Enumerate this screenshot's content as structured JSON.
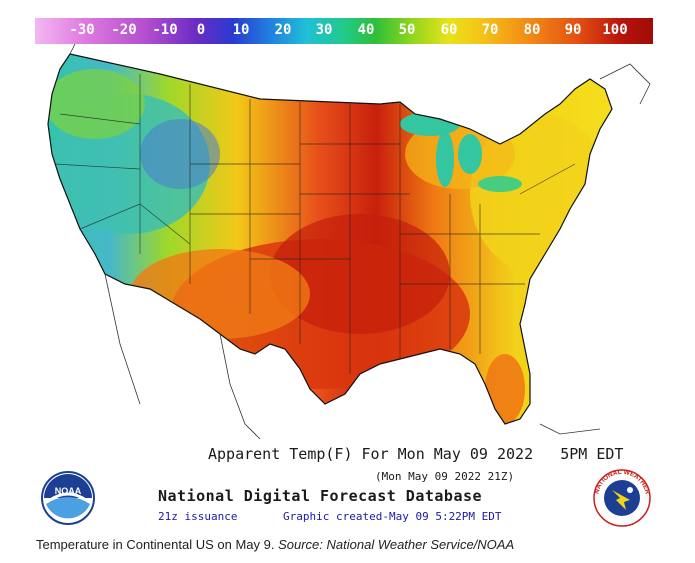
{
  "colorbar": {
    "ticks": [
      "-30",
      "-20",
      "-10",
      "0",
      "10",
      "20",
      "30",
      "40",
      "50",
      "60",
      "70",
      "80",
      "90",
      "100"
    ]
  },
  "map": {
    "title_line": "Apparent Temp(F) For Mon May 09 2022",
    "time_label": "5PM EDT",
    "issued_line": "(Mon May 09 2022 21Z)",
    "database": "National Digital Forecast Database",
    "issuance": "21z issuance",
    "created": "Graphic created-May 09  5:22PM EDT"
  },
  "logos": {
    "noaa_text": "NOAA",
    "nws_text": "NATIONAL WEATHER SERVICE"
  },
  "credit": {
    "text": "Temperature in Continental US on May 9.",
    "source": "Source: National Weather Service/NOAA"
  },
  "colors": {
    "hot": "#c8200c",
    "warm": "#f07a14",
    "mild": "#f2d21a",
    "cool": "#9fd82a",
    "cold": "#2fc6a8",
    "coldest": "#3b4fc8"
  }
}
